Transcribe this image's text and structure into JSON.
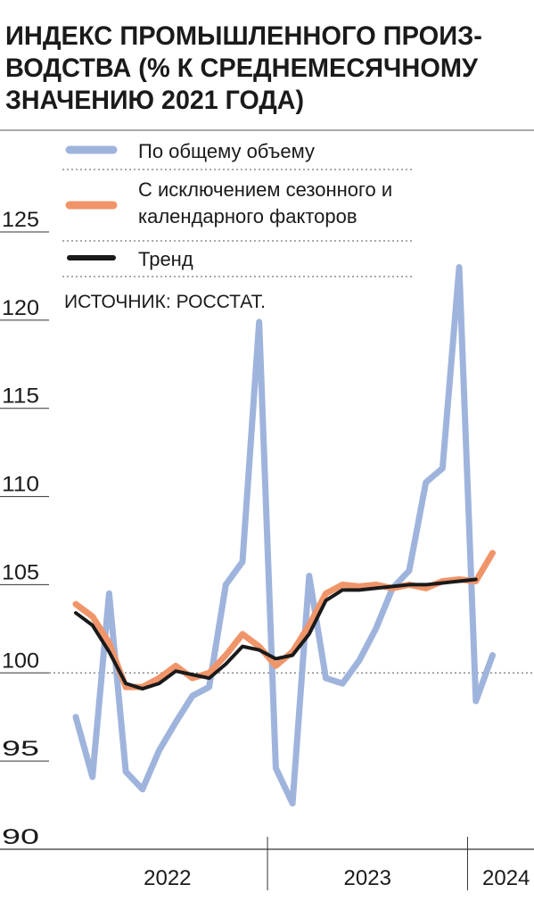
{
  "chart_data": {
    "type": "line",
    "title": [
      "ИНДЕКС ПРОМЫШЛЕННОГО ПРОИЗ-",
      "ВОДСТВА (% К СРЕДНЕМЕСЯЧНОМУ",
      "ЗНАЧЕНИЮ 2021 ГОДА)"
    ],
    "source": "ИСТОЧНИК: РОССТАТ.",
    "categories": [
      null,
      null,
      null,
      null,
      null,
      null,
      null,
      null,
      null,
      null,
      null,
      null,
      null,
      null,
      null,
      null,
      null,
      null,
      null,
      null,
      null,
      null,
      null,
      null,
      null,
      null
    ],
    "x_groups": [
      "2022",
      "2023",
      "2024"
    ],
    "series": [
      {
        "name": "По общему объему",
        "color": "#9fb4dc",
        "values": [
          97.5,
          94.1,
          104.5,
          94.4,
          93.4,
          95.6,
          97.2,
          98.7,
          99.2,
          105,
          106.3,
          119.9,
          94.6,
          92.6,
          105.5,
          99.7,
          99.4,
          100.7,
          102.5,
          104.8,
          105.8,
          110.8,
          111.6,
          123,
          98.4,
          101
        ]
      },
      {
        "name": "С исключением сезонного и календарного факторов",
        "color": "#f0956a",
        "values": [
          103.9,
          103.2,
          101.7,
          99.2,
          99.2,
          99.7,
          100.4,
          99.7,
          100,
          101,
          102.2,
          101.5,
          100.4,
          101.2,
          102.7,
          104.5,
          105,
          104.9,
          105,
          104.8,
          105,
          104.8,
          105.2,
          105.3,
          105.2,
          106.8
        ]
      },
      {
        "name": "Тренд",
        "color": "#1a1a1a",
        "values": [
          103.4,
          102.7,
          101.2,
          99.4,
          99.1,
          99.4,
          100.1,
          99.9,
          99.7,
          100.5,
          101.5,
          101.3,
          100.8,
          101,
          102.2,
          104.1,
          104.7,
          104.7,
          104.8,
          104.9,
          105,
          105,
          105.1,
          105.2,
          105.3,
          null
        ]
      }
    ],
    "ylim": [
      90,
      125
    ],
    "yticks": [
      90,
      95,
      100,
      105,
      110,
      115,
      120,
      125
    ],
    "reference_line": 100
  }
}
